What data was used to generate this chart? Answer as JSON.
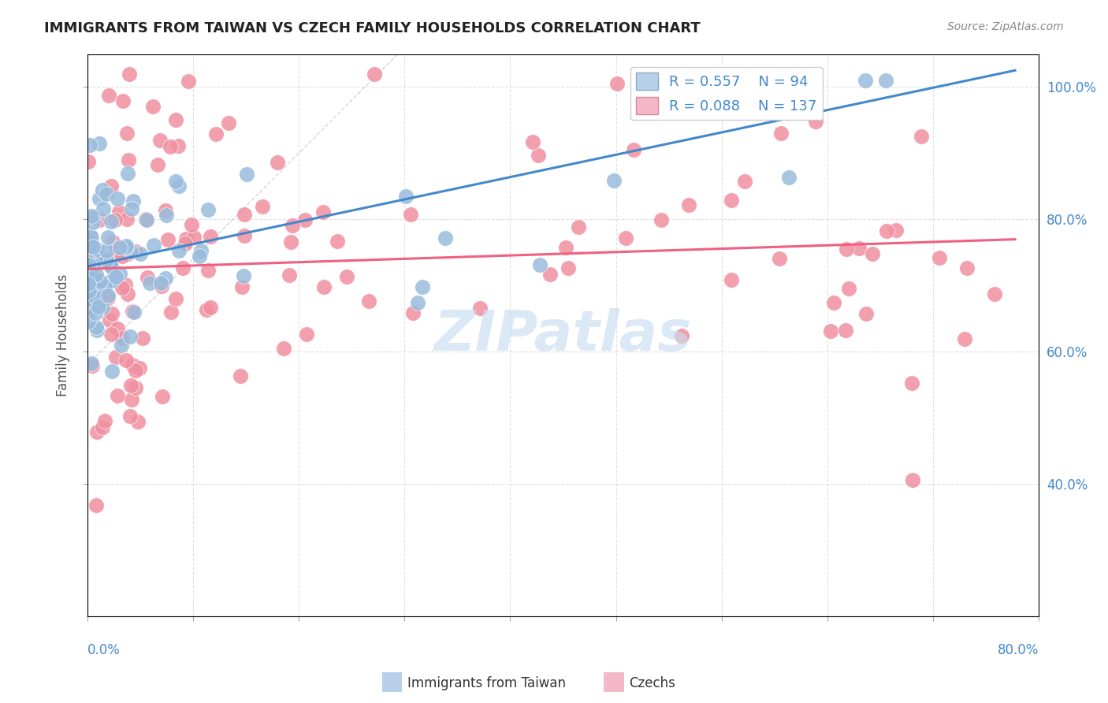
{
  "title": "IMMIGRANTS FROM TAIWAN VS CZECH FAMILY HOUSEHOLDS CORRELATION CHART",
  "source": "Source: ZipAtlas.com",
  "ylabel": "Family Households",
  "xlim": [
    0.0,
    0.8
  ],
  "ylim": [
    0.2,
    1.05
  ],
  "taiwan_R": "0.557",
  "taiwan_N": "94",
  "czech_R": "0.088",
  "czech_N": "137",
  "taiwan_line_color": "#4488cc",
  "czech_line_color": "#f06080",
  "taiwan_dot_color": "#99bbdd",
  "czech_dot_color": "#f090a0",
  "legend_R_color": "#4488cc",
  "background_color": "#ffffff",
  "grid_color": "#dddddd",
  "title_color": "#222222",
  "axis_label_color": "#4488cc",
  "watermark_color": "#c8ddf0"
}
